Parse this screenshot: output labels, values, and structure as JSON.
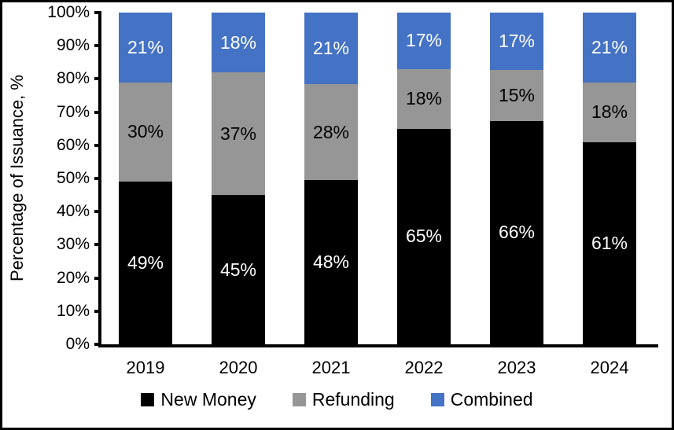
{
  "chart_data": {
    "type": "bar",
    "stacked": true,
    "title": "",
    "ylabel": "Percentage of Issuance, %",
    "xlabel": "",
    "categories": [
      "2019",
      "2020",
      "2021",
      "2022",
      "2023",
      "2024"
    ],
    "series": [
      {
        "name": "New Money",
        "color": "#000000",
        "label_color": "#FFFFFF",
        "values": [
          49,
          45,
          48,
          65,
          66,
          61
        ]
      },
      {
        "name": "Refunding",
        "color": "#969696",
        "label_color": "#000000",
        "values": [
          30,
          37,
          28,
          18,
          15,
          18
        ]
      },
      {
        "name": "Combined",
        "color": "#4472C4",
        "label_color": "#FFFFFF",
        "values": [
          21,
          18,
          21,
          17,
          17,
          21
        ]
      }
    ],
    "value_suffix": "%",
    "y_ticks": [
      "0%",
      "10%",
      "20%",
      "30%",
      "40%",
      "50%",
      "60%",
      "70%",
      "80%",
      "90%",
      "100%"
    ],
    "ylim": [
      0,
      100
    ],
    "grid": false,
    "legend_position": "bottom"
  }
}
